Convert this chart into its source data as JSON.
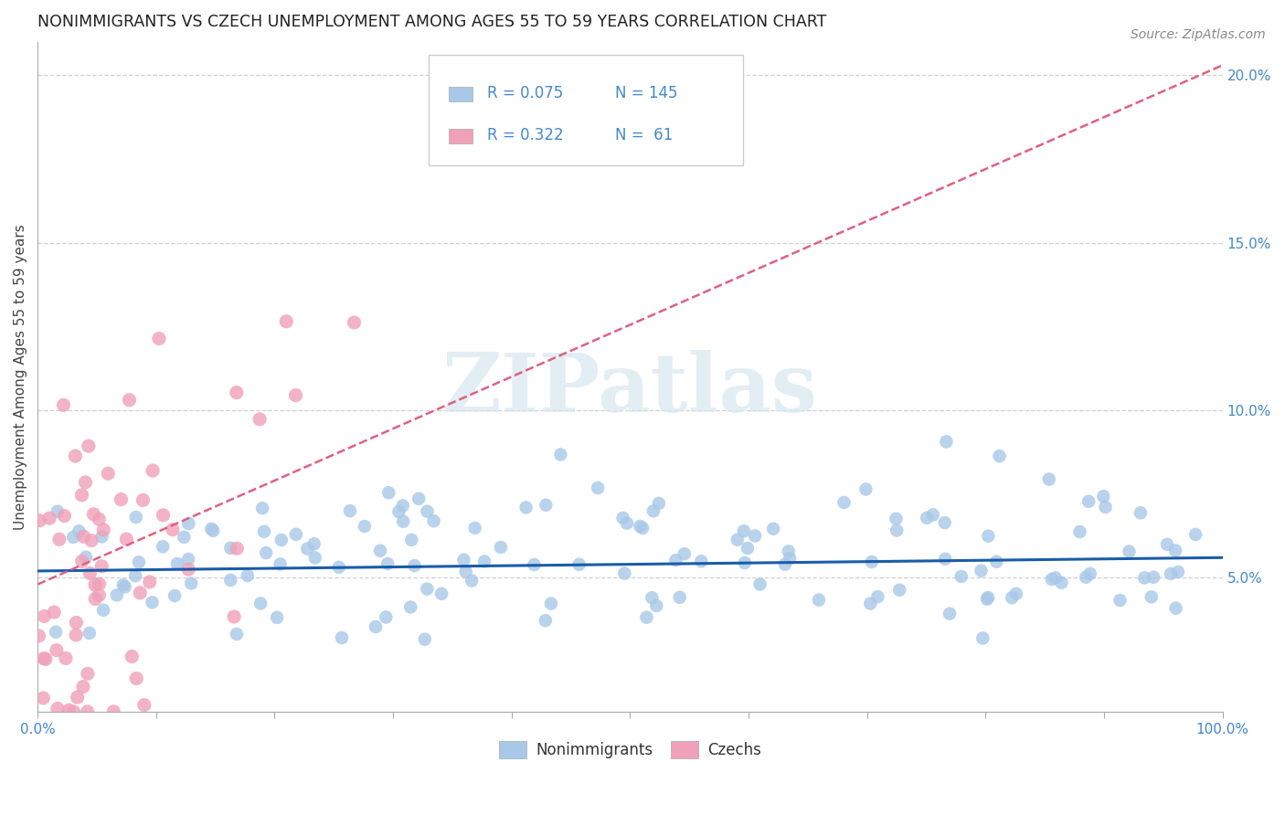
{
  "title": "NONIMMIGRANTS VS CZECH UNEMPLOYMENT AMONG AGES 55 TO 59 YEARS CORRELATION CHART",
  "source": "Source: ZipAtlas.com",
  "ylabel": "Unemployment Among Ages 55 to 59 years",
  "xlim": [
    0.0,
    1.0
  ],
  "ylim": [
    0.01,
    0.21
  ],
  "xticks": [
    0.0,
    0.1,
    0.2,
    0.3,
    0.4,
    0.5,
    0.6,
    0.7,
    0.8,
    0.9,
    1.0
  ],
  "xticklabels": [
    "0.0%",
    "",
    "",
    "",
    "",
    "",
    "",
    "",
    "",
    "",
    "100.0%"
  ],
  "yticks": [
    0.05,
    0.1,
    0.15,
    0.2
  ],
  "yticklabels": [
    "5.0%",
    "10.0%",
    "15.0%",
    "20.0%"
  ],
  "nonimm_color": "#a8c8e8",
  "czech_color": "#f0a0b8",
  "nonimm_line_color": "#1a5ca8",
  "czech_line_color": "#e06080",
  "R_nonimm": 0.075,
  "N_nonimm": 145,
  "R_czech": 0.322,
  "N_czech": 61,
  "tick_color": "#4488cc",
  "watermark_text": "ZIPatlas",
  "background_color": "#ffffff",
  "nonimm_seed": 42,
  "czech_seed": 7,
  "czech_line_intercept": 0.048,
  "czech_line_slope": 0.155,
  "nonimm_line_intercept": 0.052,
  "nonimm_line_slope": 0.004
}
